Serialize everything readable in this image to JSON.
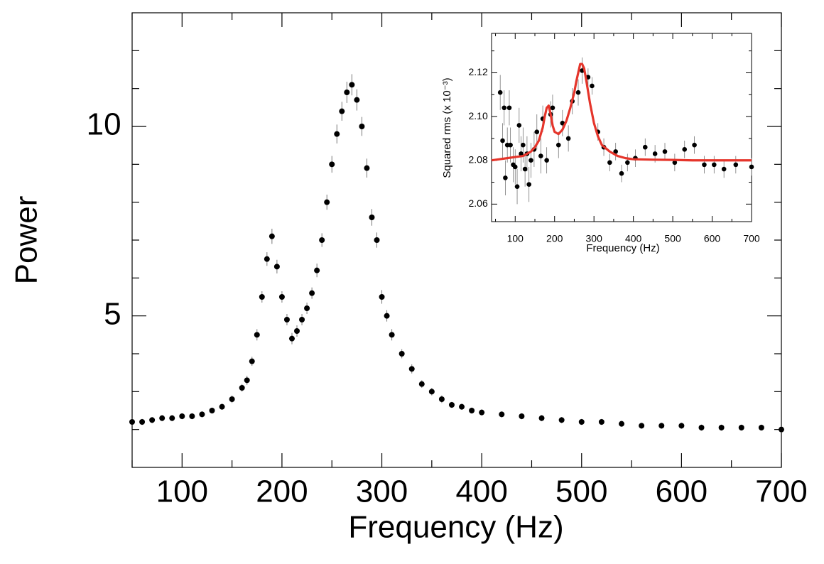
{
  "chart_data": [
    {
      "type": "scatter",
      "xlabel": "Frequency (Hz)",
      "ylabel": "Power",
      "xlim": [
        50,
        700
      ],
      "ylim": [
        1,
        13
      ],
      "xticks": [
        100,
        200,
        300,
        400,
        500,
        600,
        700
      ],
      "xminor": [
        50,
        150,
        250,
        350,
        450,
        550,
        650
      ],
      "yticks": [
        5,
        10
      ],
      "yminor": [
        2,
        3,
        4,
        6,
        7,
        8,
        9,
        11,
        12
      ],
      "series": [
        {
          "color": "#000000",
          "x": [
            50,
            60,
            70,
            80,
            90,
            100,
            110,
            120,
            130,
            140,
            150,
            160,
            165,
            170,
            175,
            180,
            185,
            190,
            195,
            200,
            205,
            210,
            215,
            220,
            225,
            230,
            235,
            240,
            245,
            250,
            255,
            260,
            265,
            270,
            275,
            280,
            285,
            290,
            295,
            300,
            305,
            310,
            320,
            330,
            340,
            350,
            360,
            370,
            380,
            390,
            400,
            420,
            440,
            460,
            480,
            500,
            520,
            540,
            560,
            580,
            600,
            620,
            640,
            660,
            680,
            700
          ],
          "values": [
            2.2,
            2.2,
            2.25,
            2.3,
            2.3,
            2.35,
            2.35,
            2.4,
            2.5,
            2.6,
            2.8,
            3.1,
            3.3,
            3.8,
            4.5,
            5.5,
            6.5,
            7.1,
            6.3,
            5.5,
            4.9,
            4.4,
            4.6,
            4.9,
            5.2,
            5.6,
            6.2,
            7.0,
            8.0,
            9.0,
            9.8,
            10.4,
            10.9,
            11.1,
            10.7,
            10.0,
            8.9,
            7.6,
            7.0,
            5.5,
            5.0,
            4.5,
            4.0,
            3.6,
            3.2,
            3.0,
            2.8,
            2.65,
            2.6,
            2.5,
            2.45,
            2.4,
            2.35,
            2.3,
            2.25,
            2.2,
            2.2,
            2.15,
            2.1,
            2.1,
            2.1,
            2.05,
            2.05,
            2.05,
            2.05,
            2.0
          ],
          "errors": [
            0.08,
            0.08,
            0.08,
            0.08,
            0.08,
            0.08,
            0.08,
            0.08,
            0.08,
            0.08,
            0.1,
            0.1,
            0.12,
            0.12,
            0.15,
            0.15,
            0.18,
            0.2,
            0.18,
            0.15,
            0.15,
            0.15,
            0.15,
            0.15,
            0.15,
            0.15,
            0.18,
            0.18,
            0.2,
            0.22,
            0.25,
            0.25,
            0.28,
            0.28,
            0.28,
            0.25,
            0.25,
            0.22,
            0.2,
            0.18,
            0.15,
            0.15,
            0.12,
            0.12,
            0.1,
            0.1,
            0.1,
            0.08,
            0.08,
            0.08,
            0.08,
            0.08,
            0.08,
            0.08,
            0.08,
            0.08,
            0.08,
            0.08,
            0.08,
            0.08,
            0.08,
            0.08,
            0.08,
            0.08,
            0.08,
            0.08
          ]
        }
      ]
    },
    {
      "type": "scatter",
      "xlabel": "Frequency (Hz)",
      "ylabel": "Squared rms (x 10⁻³)",
      "xlim": [
        40,
        700
      ],
      "ylim": [
        2.052,
        2.138
      ],
      "xticks": [
        100,
        200,
        300,
        400,
        500,
        600,
        700
      ],
      "xminor": [
        50,
        150,
        250,
        350,
        450,
        550,
        650
      ],
      "yticks": [
        2.06,
        2.08,
        {
          "value": 2.1,
          "label": "2.10"
        },
        2.12
      ],
      "yminor": [
        2.07,
        2.09,
        2.11,
        2.13
      ],
      "series": [
        {
          "color": "#000000",
          "x": [
            62,
            68,
            72,
            75,
            80,
            85,
            88,
            95,
            100,
            105,
            110,
            115,
            120,
            125,
            130,
            135,
            140,
            148,
            155,
            165,
            170,
            180,
            190,
            195,
            210,
            220,
            235,
            245,
            260,
            270,
            285,
            295,
            310,
            325,
            340,
            355,
            370,
            385,
            405,
            430,
            455,
            480,
            505,
            530,
            555,
            580,
            605,
            630,
            660,
            700
          ],
          "values": [
            2.111,
            2.089,
            2.104,
            2.072,
            2.087,
            2.104,
            2.087,
            2.078,
            2.077,
            2.068,
            2.096,
            2.083,
            2.087,
            2.076,
            2.083,
            2.069,
            2.08,
            2.085,
            2.093,
            2.082,
            2.099,
            2.08,
            2.101,
            2.104,
            2.087,
            2.097,
            2.09,
            2.107,
            2.111,
            2.121,
            2.118,
            2.114,
            2.093,
            2.086,
            2.079,
            2.084,
            2.074,
            2.079,
            2.081,
            2.086,
            2.083,
            2.084,
            2.079,
            2.085,
            2.087,
            2.078,
            2.078,
            2.076,
            2.078,
            2.077
          ],
          "errors": [
            0.008,
            0.008,
            0.008,
            0.008,
            0.008,
            0.008,
            0.008,
            0.008,
            0.008,
            0.008,
            0.008,
            0.008,
            0.008,
            0.008,
            0.008,
            0.008,
            0.008,
            0.008,
            0.008,
            0.008,
            0.006,
            0.006,
            0.006,
            0.006,
            0.006,
            0.006,
            0.006,
            0.006,
            0.006,
            0.006,
            0.004,
            0.004,
            0.004,
            0.004,
            0.004,
            0.004,
            0.004,
            0.004,
            0.004,
            0.004,
            0.004,
            0.004,
            0.004,
            0.004,
            0.004,
            0.004,
            0.004,
            0.004,
            0.004,
            0.004
          ]
        },
        {
          "color": "#e5352b",
          "x": [
            40,
            60,
            80,
            100,
            120,
            140,
            150,
            160,
            170,
            175,
            180,
            185,
            190,
            195,
            200,
            210,
            220,
            230,
            240,
            250,
            255,
            260,
            265,
            270,
            275,
            280,
            290,
            300,
            310,
            320,
            340,
            360,
            380,
            400,
            450,
            500,
            550,
            600,
            650,
            700
          ],
          "values": [
            2.08,
            2.0805,
            2.081,
            2.0815,
            2.082,
            2.084,
            2.086,
            2.089,
            2.095,
            2.1,
            2.104,
            2.105,
            2.101,
            2.096,
            2.093,
            2.092,
            2.094,
            2.098,
            2.104,
            2.111,
            2.116,
            2.12,
            2.124,
            2.124,
            2.122,
            2.117,
            2.106,
            2.097,
            2.091,
            2.087,
            2.084,
            2.082,
            2.081,
            2.0805,
            2.0803,
            2.0802,
            2.08,
            2.08,
            2.08,
            2.08
          ]
        }
      ]
    }
  ]
}
